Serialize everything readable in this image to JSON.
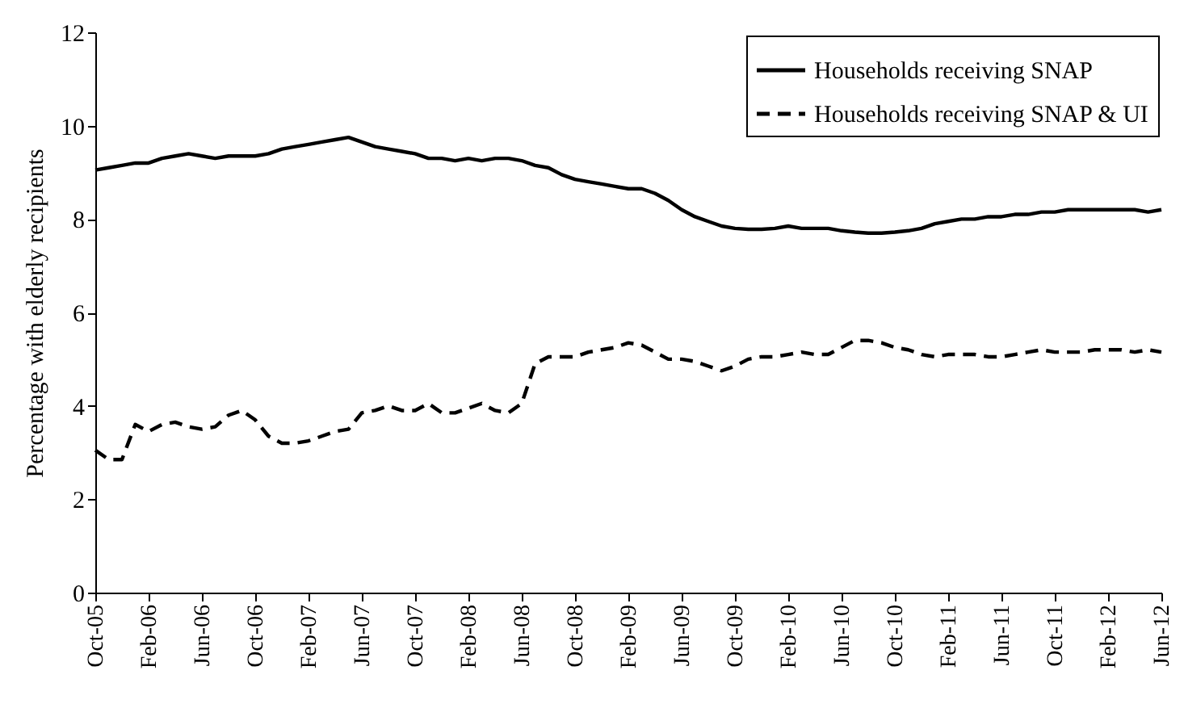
{
  "chart_data": {
    "type": "line",
    "ylabel": "Percentage with elderly recipients",
    "categories": [
      "Oct-05",
      null,
      null,
      null,
      "Feb-06",
      null,
      null,
      null,
      "Jun-06",
      null,
      null,
      null,
      "Oct-06",
      null,
      null,
      null,
      "Feb-07",
      null,
      null,
      null,
      "Jun-07",
      null,
      null,
      null,
      "Oct-07",
      null,
      null,
      null,
      "Feb-08",
      null,
      null,
      null,
      "Jun-08",
      null,
      null,
      null,
      "Oct-08",
      null,
      null,
      null,
      "Feb-09",
      null,
      null,
      null,
      "Jun-09",
      null,
      null,
      null,
      "Oct-09",
      null,
      null,
      null,
      "Feb-10",
      null,
      null,
      null,
      "Jun-10",
      null,
      null,
      null,
      "Oct-10",
      null,
      null,
      null,
      "Feb-11",
      null,
      null,
      null,
      "Jun-11",
      null,
      null,
      null,
      "Oct-11",
      null,
      null,
      null,
      "Feb-12",
      null,
      null,
      null,
      "Jun-12"
    ],
    "series": [
      {
        "name": "Households receiving SNAP",
        "color": "#000000",
        "line_style": "solid",
        "values": [
          9.05,
          9.1,
          9.15,
          9.2,
          9.2,
          9.3,
          9.35,
          9.4,
          9.35,
          9.3,
          9.35,
          9.35,
          9.35,
          9.4,
          9.5,
          9.55,
          9.6,
          9.65,
          9.7,
          9.75,
          9.65,
          9.55,
          9.5,
          9.45,
          9.4,
          9.3,
          9.3,
          9.25,
          9.3,
          9.25,
          9.3,
          9.3,
          9.25,
          9.15,
          9.1,
          8.95,
          8.85,
          8.8,
          8.75,
          8.7,
          8.65,
          8.65,
          8.55,
          8.4,
          8.2,
          8.05,
          7.95,
          7.85,
          7.8,
          7.78,
          7.78,
          7.8,
          7.85,
          7.8,
          7.8,
          7.8,
          7.75,
          7.72,
          7.7,
          7.7,
          7.72,
          7.75,
          7.8,
          7.9,
          7.95,
          8.0,
          8.0,
          8.05,
          8.05,
          8.1,
          8.1,
          8.15,
          8.15,
          8.2,
          8.2,
          8.2,
          8.2,
          8.2,
          8.2,
          8.15,
          8.2
        ]
      },
      {
        "name": "Households receiving SNAP & UI",
        "color": "#000000",
        "line_style": "dashed",
        "values": [
          3.05,
          2.85,
          2.85,
          3.6,
          3.45,
          3.6,
          3.65,
          3.55,
          3.5,
          3.55,
          3.8,
          3.9,
          3.7,
          3.35,
          3.2,
          3.2,
          3.25,
          3.35,
          3.45,
          3.5,
          3.85,
          3.9,
          4.0,
          3.9,
          3.9,
          4.05,
          3.85,
          3.85,
          3.95,
          4.05,
          3.9,
          3.85,
          4.05,
          4.9,
          5.05,
          5.05,
          5.05,
          5.15,
          5.2,
          5.25,
          5.35,
          5.3,
          5.15,
          5.0,
          5.0,
          4.95,
          4.85,
          4.75,
          4.85,
          5.0,
          5.05,
          5.05,
          5.1,
          5.15,
          5.1,
          5.1,
          5.25,
          5.4,
          5.4,
          5.35,
          5.25,
          5.2,
          5.1,
          5.05,
          5.1,
          5.1,
          5.1,
          5.05,
          5.05,
          5.1,
          5.15,
          5.2,
          5.15,
          5.15,
          5.15,
          5.2,
          5.2,
          5.2,
          5.15,
          5.2,
          5.15
        ]
      }
    ],
    "ylim": [
      0,
      12
    ],
    "yticks": [
      0,
      2,
      4,
      6,
      8,
      10,
      12
    ],
    "legend": "top right"
  }
}
